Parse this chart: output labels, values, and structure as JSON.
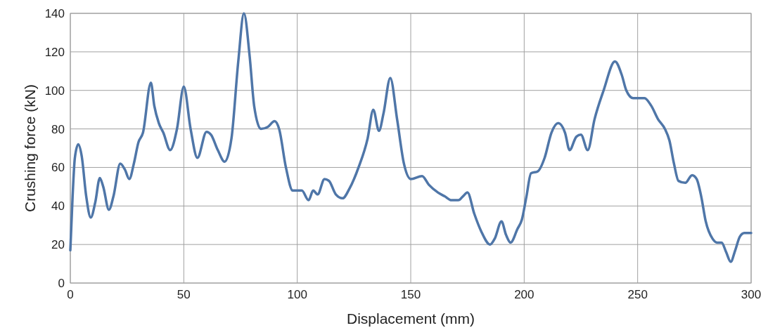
{
  "chart_data": {
    "type": "line",
    "xlabel": "Displacement (mm)",
    "ylabel": "Crushing force (kN)",
    "xlim": [
      0,
      300
    ],
    "xticks": [
      0,
      50,
      100,
      150,
      200,
      250,
      300
    ],
    "ylim": [
      0,
      140
    ],
    "yticks": [
      0,
      20,
      40,
      60,
      80,
      100,
      120,
      140
    ],
    "grid": true,
    "line_style": "solid",
    "series": [
      {
        "color": "#4f76a8",
        "x": [
          0,
          1,
          2,
          3.5,
          5,
          7,
          9,
          11,
          13,
          14.5,
          17,
          19,
          22,
          24,
          26,
          28,
          30,
          32,
          35.5,
          37,
          39,
          41,
          44,
          47,
          50,
          53,
          56,
          60,
          62,
          65,
          68,
          71,
          74,
          76.5,
          79,
          81,
          84,
          87,
          90,
          92,
          95,
          98,
          102,
          105,
          107,
          109,
          112,
          114,
          117,
          120,
          123,
          127,
          131,
          133.5,
          136,
          138,
          141,
          144,
          147,
          150,
          155,
          158,
          162,
          165,
          168,
          171,
          173,
          175,
          178,
          181,
          185,
          187,
          190,
          192,
          194,
          197,
          199,
          201,
          203,
          206,
          209,
          212,
          215,
          218,
          220,
          223,
          225,
          228,
          231,
          235,
          240,
          243,
          245,
          248,
          253,
          256,
          259,
          262,
          264,
          266,
          268,
          271,
          274,
          276,
          278,
          280,
          283,
          285,
          287,
          289,
          291,
          293,
          295,
          297,
          300
        ],
        "values": [
          17,
          45,
          65,
          72,
          66,
          45,
          34,
          42,
          54.5,
          50,
          38,
          45,
          62,
          59,
          54,
          62,
          73,
          78,
          104,
          92,
          83,
          78,
          69,
          80,
          102,
          80,
          65,
          78.5,
          77,
          69,
          63,
          75,
          115,
          140,
          118,
          92,
          80,
          81,
          84,
          80,
          60,
          48,
          48,
          43,
          48,
          46,
          54,
          53,
          46,
          44,
          49,
          60,
          75,
          90,
          79,
          88,
          106.5,
          85,
          62,
          54,
          55.5,
          51,
          47,
          45,
          43,
          43,
          45,
          47,
          36,
          27,
          20,
          23,
          32,
          25,
          21,
          28,
          33,
          45,
          57,
          58,
          65,
          78,
          83,
          78,
          69,
          76,
          77,
          69,
          85,
          100,
          115,
          108,
          100,
          96,
          96,
          92,
          85,
          80,
          74,
          62,
          53,
          52,
          56,
          54,
          45,
          32,
          23,
          21,
          21,
          16,
          11,
          17,
          24,
          26,
          26
        ]
      }
    ]
  }
}
